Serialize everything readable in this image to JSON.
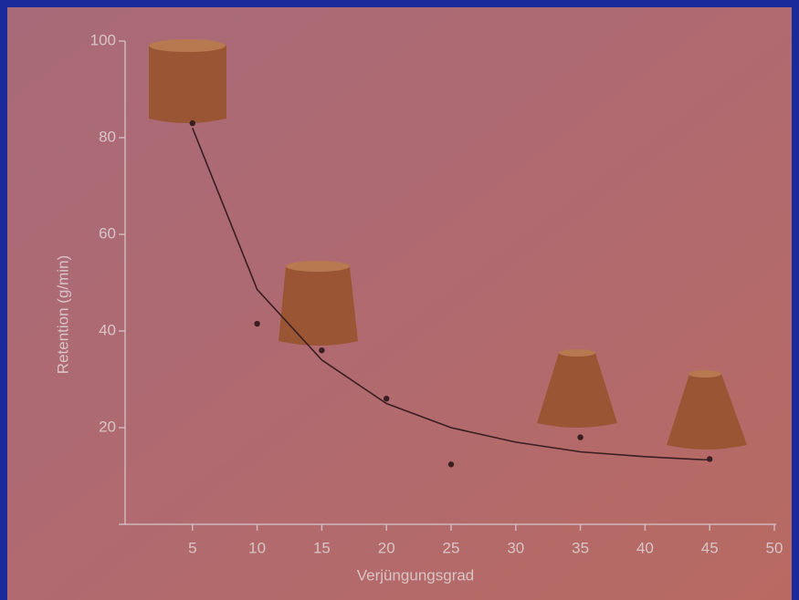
{
  "chart_data": {
    "type": "scatter",
    "xlabel": "Verjüngungsgrad",
    "ylabel": "Retention (g/min)",
    "xlim": [
      0,
      50
    ],
    "ylim": [
      0,
      100
    ],
    "xticks": [
      5,
      10,
      15,
      20,
      25,
      30,
      35,
      40,
      45,
      50
    ],
    "yticks": [
      20,
      40,
      60,
      80,
      100
    ],
    "series": [
      {
        "type": "scatter",
        "color": "#3a1e22",
        "x": [
          5,
          10,
          15,
          20,
          25,
          35,
          45
        ],
        "values": [
          83,
          41.5,
          36,
          26,
          12.4,
          18,
          13.5
        ]
      },
      {
        "type": "line",
        "color": "#3a1e22",
        "x": [
          5,
          10,
          15,
          20,
          25,
          30,
          35,
          40,
          45
        ],
        "values": [
          82,
          48.6,
          34,
          25,
          20,
          17,
          15,
          14,
          13.3
        ]
      }
    ]
  }
}
